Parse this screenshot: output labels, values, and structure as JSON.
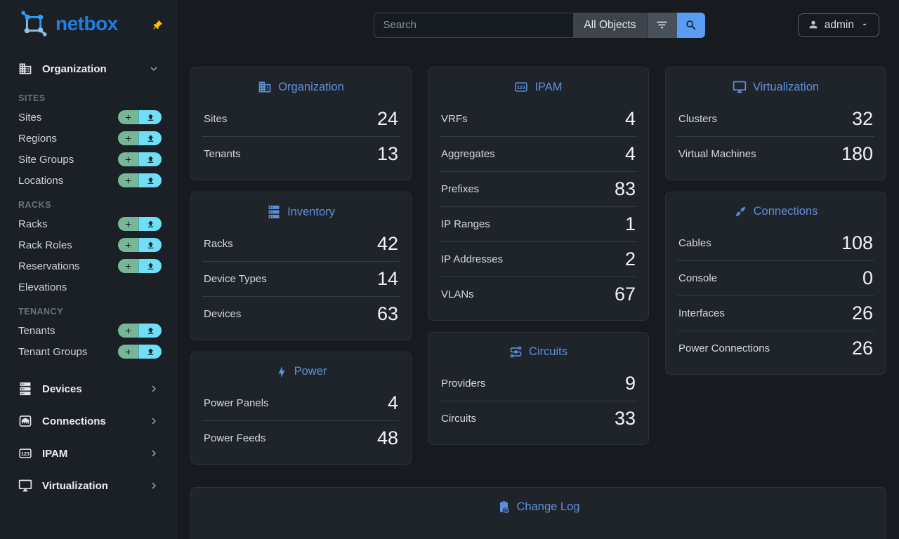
{
  "brand": {
    "name": "netbox"
  },
  "topbar": {
    "search_placeholder": "Search",
    "scope_label": "All Objects",
    "user_label": "admin"
  },
  "sidebar": {
    "org_group": {
      "label": "Organization",
      "icon": "building-icon"
    },
    "sections": [
      {
        "header": "SITES",
        "items": [
          {
            "label": "Sites",
            "actions": true
          },
          {
            "label": "Regions",
            "actions": true
          },
          {
            "label": "Site Groups",
            "actions": true
          },
          {
            "label": "Locations",
            "actions": true
          }
        ]
      },
      {
        "header": "RACKS",
        "items": [
          {
            "label": "Racks",
            "actions": true
          },
          {
            "label": "Rack Roles",
            "actions": true
          },
          {
            "label": "Reservations",
            "actions": true
          },
          {
            "label": "Elevations",
            "actions": false
          }
        ]
      },
      {
        "header": "TENANCY",
        "items": [
          {
            "label": "Tenants",
            "actions": true
          },
          {
            "label": "Tenant Groups",
            "actions": true
          }
        ]
      }
    ],
    "groups": [
      {
        "label": "Devices",
        "icon": "server-icon"
      },
      {
        "label": "Connections",
        "icon": "ethernet-icon"
      },
      {
        "label": "IPAM",
        "icon": "counter-icon"
      },
      {
        "label": "Virtualization",
        "icon": "monitor-icon"
      }
    ]
  },
  "dashboard": {
    "columns": [
      [
        {
          "title": "Organization",
          "icon": "building-icon",
          "rows": [
            {
              "label": "Sites",
              "value": "24"
            },
            {
              "label": "Tenants",
              "value": "13"
            }
          ]
        },
        {
          "title": "Inventory",
          "icon": "server-icon",
          "rows": [
            {
              "label": "Racks",
              "value": "42"
            },
            {
              "label": "Device Types",
              "value": "14"
            },
            {
              "label": "Devices",
              "value": "63"
            }
          ]
        },
        {
          "title": "Power",
          "icon": "bolt-icon",
          "rows": [
            {
              "label": "Power Panels",
              "value": "4"
            },
            {
              "label": "Power Feeds",
              "value": "48"
            }
          ]
        }
      ],
      [
        {
          "title": "IPAM",
          "icon": "counter-icon",
          "rows": [
            {
              "label": "VRFs",
              "value": "4"
            },
            {
              "label": "Aggregates",
              "value": "4"
            },
            {
              "label": "Prefixes",
              "value": "83"
            },
            {
              "label": "IP Ranges",
              "value": "1"
            },
            {
              "label": "IP Addresses",
              "value": "2"
            },
            {
              "label": "VLANs",
              "value": "67"
            }
          ]
        },
        {
          "title": "Circuits",
          "icon": "transit-icon",
          "rows": [
            {
              "label": "Providers",
              "value": "9"
            },
            {
              "label": "Circuits",
              "value": "33"
            }
          ]
        }
      ],
      [
        {
          "title": "Virtualization",
          "icon": "monitor-icon",
          "rows": [
            {
              "label": "Clusters",
              "value": "32"
            },
            {
              "label": "Virtual Machines",
              "value": "180"
            }
          ]
        },
        {
          "title": "Connections",
          "icon": "cable-icon",
          "rows": [
            {
              "label": "Cables",
              "value": "108"
            },
            {
              "label": "Console",
              "value": "0"
            },
            {
              "label": "Interfaces",
              "value": "26"
            },
            {
              "label": "Power Connections",
              "value": "26"
            }
          ]
        }
      ]
    ],
    "change_log": {
      "title": "Change Log",
      "icon": "clipboard-clock-icon"
    }
  },
  "colors": {
    "accent_blue": "#5f90dc",
    "logo_blue": "#1f7fdf",
    "add_green": "#75b798",
    "import_cyan": "#6edff6",
    "pin_yellow": "#ffc107",
    "search_primary": "#5b9cf3"
  }
}
